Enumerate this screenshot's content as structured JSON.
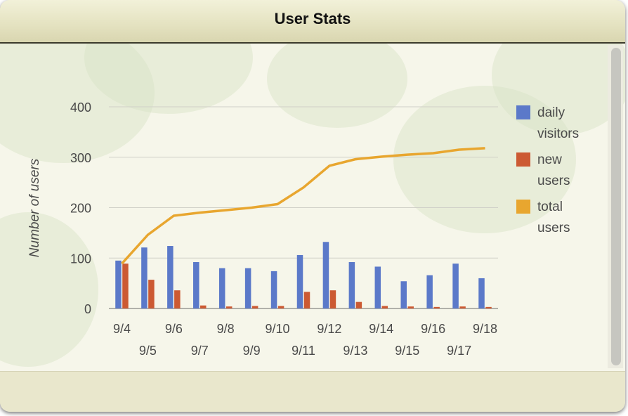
{
  "window": {
    "title": "User Stats"
  },
  "colors": {
    "daily_visitors": "#5b79c9",
    "new_users": "#cc5a33",
    "total_users": "#e8a62f",
    "grid": "#d0d0c8",
    "text": "#4a4a4a"
  },
  "chart_data": {
    "type": "bar",
    "title": "",
    "xlabel": "",
    "ylabel": "Number of users",
    "ylim": [
      0,
      400
    ],
    "yticks": [
      0,
      100,
      200,
      300,
      400
    ],
    "grid": true,
    "legend_position": "right",
    "categories": [
      "9/4",
      "9/5",
      "9/6",
      "9/7",
      "9/8",
      "9/9",
      "9/10",
      "9/11",
      "9/12",
      "9/13",
      "9/14",
      "9/15",
      "9/16",
      "9/17",
      "9/18"
    ],
    "series": [
      {
        "name": "daily visitors",
        "type": "bar",
        "values": [
          95,
          121,
          124,
          92,
          80,
          80,
          74,
          106,
          132,
          92,
          83,
          54,
          66,
          89,
          60
        ]
      },
      {
        "name": "new users",
        "type": "bar",
        "values": [
          89,
          57,
          36,
          6,
          4,
          5,
          5,
          33,
          36,
          13,
          5,
          4,
          3,
          4,
          3
        ]
      },
      {
        "name": "total users",
        "type": "line",
        "values": [
          89,
          146,
          184,
          190,
          195,
          200,
          207,
          240,
          283,
          296,
          301,
          305,
          308,
          315,
          318
        ]
      }
    ],
    "legend": [
      {
        "lines": [
          "daily",
          "visitors"
        ]
      },
      {
        "lines": [
          "new",
          "users"
        ]
      },
      {
        "lines": [
          "total",
          "users"
        ]
      }
    ]
  }
}
